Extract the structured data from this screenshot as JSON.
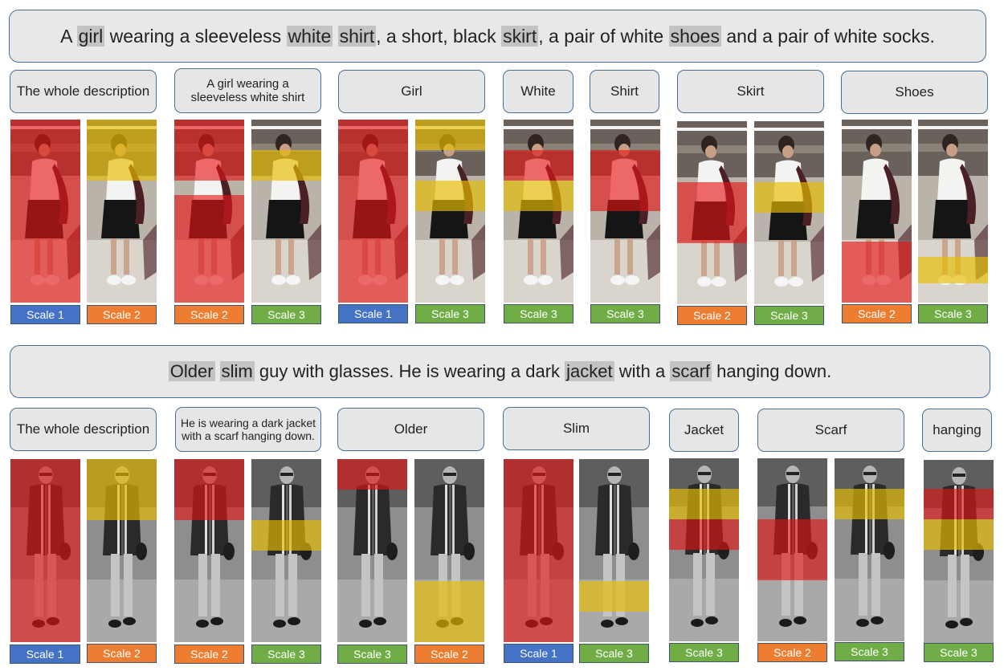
{
  "row1": {
    "sentence": {
      "parts": [
        {
          "t": "A ",
          "h": false
        },
        {
          "t": "girl",
          "h": true
        },
        {
          "t": " wearing a sleeveless ",
          "h": false
        },
        {
          "t": "white",
          "h": true
        },
        {
          "t": " ",
          "h": false
        },
        {
          "t": "shirt",
          "h": true
        },
        {
          "t": ", a short, black ",
          "h": false
        },
        {
          "t": "skirt",
          "h": true
        },
        {
          "t": ", a pair of white ",
          "h": false
        },
        {
          "t": "shoes",
          "h": true
        },
        {
          "t": " and a pair of white socks.",
          "h": false
        }
      ]
    },
    "phrases": [
      "The whole description",
      "A girl wearing a sleeveless white shirt",
      "Girl",
      "White",
      "Shirt",
      "Skirt",
      "Shoes"
    ],
    "labels": [
      "Scale 1",
      "Scale 2",
      "Scale 2",
      "Scale 3",
      "Scale 1",
      "Scale 3",
      "Scale 3",
      "Scale 3",
      "Scale 2",
      "Scale 3",
      "Scale 2",
      "Scale 3"
    ]
  },
  "row2": {
    "sentence": {
      "parts": [
        {
          "t": "Older",
          "h": true
        },
        {
          "t": " ",
          "h": false
        },
        {
          "t": "slim",
          "h": true
        },
        {
          "t": " guy with glasses. He is wearing a dark ",
          "h": false
        },
        {
          "t": "jacket",
          "h": true
        },
        {
          "t": " with a ",
          "h": false
        },
        {
          "t": "scarf",
          "h": true
        },
        {
          "t": " hanging down.",
          "h": false
        }
      ]
    },
    "phrases": [
      "The whole description",
      "He is wearing a dark jacket with a scarf hanging down.",
      "Older",
      "Slim",
      "Jacket",
      "Scarf",
      "hanging"
    ],
    "labels": [
      "Scale 1",
      "Scale 2",
      "Scale 2",
      "Scale 3",
      "Scale 3",
      "Scale 2",
      "Scale 1",
      "Scale 3",
      "Scale 3",
      "Scale 2",
      "Scale 3",
      "Scale 3"
    ]
  },
  "colors": {
    "scale1": "#4472c4",
    "scale2": "#ed7d31",
    "scale3": "#70ad47",
    "attention_red": "#e61414",
    "attention_yellow": "#e8be00"
  },
  "image_description": [
    "pedestrian photo: woman in white sleeveless shirt and black skirt",
    "pedestrian photo: older man with glasses, dark jacket and long striped scarf"
  ]
}
